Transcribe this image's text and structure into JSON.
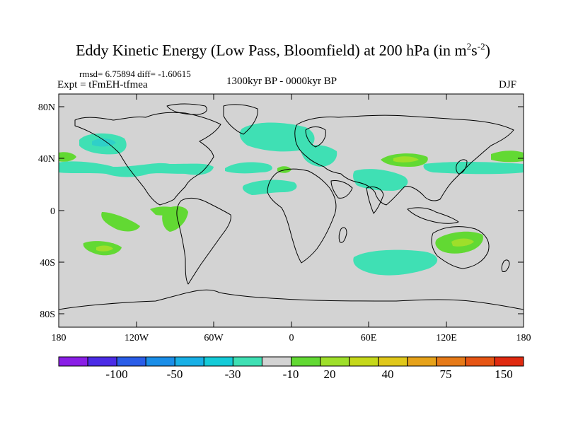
{
  "title": {
    "main": "Eddy Kinetic Energy (Low Pass, Bloomfield) at 200 hPa (in m",
    "sup1": "2",
    "mid": "s",
    "sup2": "-2",
    "end": ")"
  },
  "stats": "rmsd= 6.75894 diff= -1.60615",
  "experiment": "Expt = tFmEH-tfmea",
  "period": "1300kyr BP - 0000kyr BP",
  "season": "DJF",
  "axes": {
    "lat_labels": [
      "80N",
      "40N",
      "0",
      "40S",
      "80S"
    ],
    "lon_labels": [
      "180",
      "120W",
      "60W",
      "0",
      "60E",
      "120E",
      "180"
    ]
  },
  "colors": {
    "land_bg": "#d3d3d3",
    "neg_light": "#3fe0b4",
    "neg_mid": "#2fd0c8",
    "pos_light": "#62d933",
    "pos_mid": "#9edf2a",
    "pos_strong": "#c5d81a"
  },
  "colorbar": {
    "colors": [
      "#8a1fe6",
      "#4b2ce6",
      "#2a5de8",
      "#1a8ee8",
      "#18b0e6",
      "#14cbd8",
      "#3fe0b4",
      "#d3d3d3",
      "#62d933",
      "#9edf2a",
      "#c5d81a",
      "#e0c81a",
      "#e6a21a",
      "#e67a18",
      "#e65514",
      "#e02a10"
    ],
    "labels": [
      "-100",
      "-50",
      "-30",
      "-10",
      "20",
      "40",
      "75",
      "150"
    ]
  }
}
